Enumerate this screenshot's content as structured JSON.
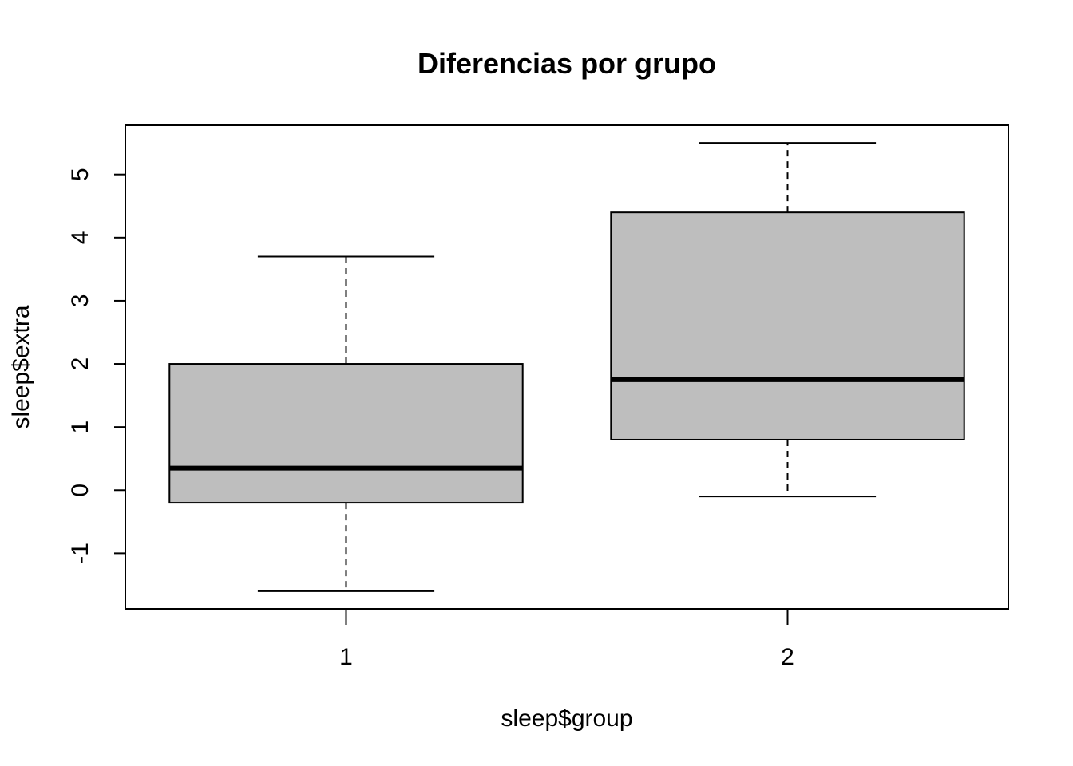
{
  "chart_data": {
    "type": "boxplot",
    "title": "Diferencias por grupo",
    "xlabel": "sleep$group",
    "ylabel": "sleep$extra",
    "categories": [
      "1",
      "2"
    ],
    "boxes": [
      {
        "category": "1",
        "whisker_low": -1.6,
        "q1": -0.2,
        "median": 0.35,
        "q3": 2.0,
        "whisker_high": 3.7
      },
      {
        "category": "2",
        "whisker_low": -0.1,
        "q1": 0.8,
        "median": 1.75,
        "q3": 4.4,
        "whisker_high": 5.5
      }
    ],
    "yticks": [
      "-1",
      "0",
      "1",
      "2",
      "3",
      "4",
      "5"
    ],
    "ylim": [
      -1.88,
      5.78
    ],
    "grid": false,
    "box_fill": "#bebebe",
    "line_color": "#000000"
  }
}
